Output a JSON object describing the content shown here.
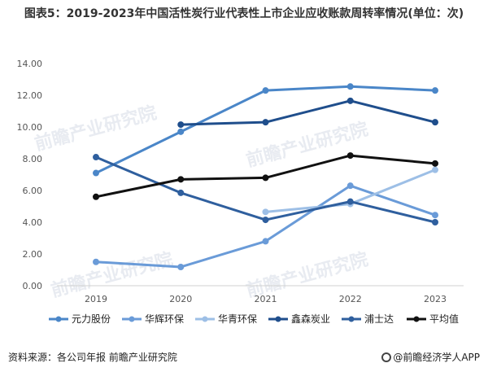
{
  "title": "图表5：2019-2023年中国活性炭行业代表性上市企业应收账款周转率情况(单位：次)",
  "footer": {
    "source": "资料来源：各公司年报 前瞻产业研究院",
    "brand": "@前瞻经济学人APP"
  },
  "watermark_text": "前瞻产业研究院",
  "colors": {
    "元力股份": "#4a86c8",
    "华辉环保": "#6a9bd8",
    "华青环保": "#9dbfe6",
    "鑫森炭业": "#1f4e8c",
    "浦士达": "#2f5f9e",
    "平均值": "#111111"
  },
  "chart_data": {
    "type": "line",
    "x": [
      "2019",
      "2020",
      "2021",
      "2022",
      "2023"
    ],
    "ylim": [
      0,
      14
    ],
    "yticks": [
      "0.00",
      "2.00",
      "4.00",
      "6.00",
      "8.00",
      "10.00",
      "12.00",
      "14.00"
    ],
    "grid": false,
    "legend": "bottom",
    "series": [
      {
        "name": "元力股份",
        "values": [
          7.1,
          9.7,
          12.3,
          12.55,
          12.3
        ]
      },
      {
        "name": "华辉环保",
        "values": [
          1.5,
          1.18,
          2.8,
          6.3,
          4.45
        ]
      },
      {
        "name": "华青环保",
        "values": [
          null,
          null,
          4.65,
          5.15,
          7.3
        ]
      },
      {
        "name": "鑫森炭业",
        "values": [
          null,
          10.15,
          10.3,
          11.65,
          10.3
        ]
      },
      {
        "name": "浦士达",
        "values": [
          8.1,
          5.85,
          4.15,
          5.3,
          4.0
        ]
      },
      {
        "name": "平均值",
        "values": [
          5.6,
          6.7,
          6.8,
          8.2,
          7.7
        ]
      }
    ]
  }
}
